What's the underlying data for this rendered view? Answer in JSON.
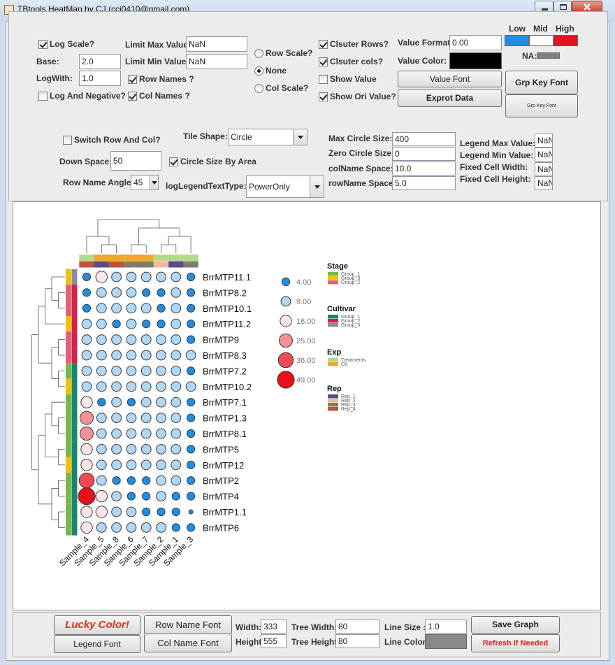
{
  "window": {
    "title": "TBtools HeatMap by CJ (ccj0410@gmail.com)"
  },
  "options": {
    "log_scale": {
      "label": "Log Scale?",
      "checked": true
    },
    "base": {
      "label": "Base:",
      "value": "2.0"
    },
    "log_with": {
      "label": "LogWith:",
      "value": "1.0"
    },
    "log_and_negative": {
      "label": "Log And Negative?",
      "checked": false
    },
    "limit_max": {
      "label": "Limit Max Value:",
      "value": "NaN"
    },
    "limit_min": {
      "label": "Limit Min Value:",
      "value": "NaN"
    },
    "row_names": {
      "label": "Row Names ?",
      "checked": true
    },
    "col_names": {
      "label": "Col Names ?",
      "checked": true
    },
    "scale": {
      "options": [
        "Row Scale?",
        "None",
        "Col Scale?"
      ],
      "selected": 1
    },
    "cluster_rows": {
      "label": "Clsuter Rows?",
      "checked": true
    },
    "cluster_cols": {
      "label": "Clsuter cols?",
      "checked": true
    },
    "show_value": {
      "label": "Show Value",
      "checked": false
    },
    "show_ori_value": {
      "label": "Show Ori Value?",
      "checked": true
    },
    "value_format": {
      "label": "Value Format:",
      "value": "0.00"
    },
    "value_color": {
      "label": "Value Color:",
      "color": "#000000"
    },
    "value_font": {
      "label": "Value Font"
    },
    "exprot_data": {
      "label": "Exprot Data"
    },
    "color_scale": {
      "low": {
        "label": "Low",
        "color": "#1e8fe6"
      },
      "mid": {
        "label": "Mid",
        "color": "#ffffff"
      },
      "high": {
        "label": "High",
        "color": "#e8101c"
      }
    },
    "na": {
      "label": "NA:",
      "color": "#808080"
    },
    "grp_key_font": {
      "label": "Grp Key Font"
    },
    "grp_key_font_small": {
      "label": "Grp Key Font"
    },
    "switch_row_col": {
      "label": "Switch Row And Col?",
      "checked": false
    },
    "tile_shape": {
      "label": "Tile Shape:",
      "value": "Circle"
    },
    "down_space": {
      "label": "Down Space:",
      "value": "50"
    },
    "circle_size_by_area": {
      "label": "Circle Size By Area",
      "checked": true
    },
    "row_name_angle": {
      "label": "Row Name Angle:",
      "value": "45"
    },
    "log_legend_text_type": {
      "label": "logLegendTextType:",
      "value": "PowerOnly"
    },
    "max_circle_size": {
      "label": "Max Circle Size:",
      "value": "400"
    },
    "zero_circle_size": {
      "label": "Zero Circle Size:",
      "value": "0"
    },
    "col_name_space": {
      "label": "colName Space:",
      "value": "10.0"
    },
    "row_name_space": {
      "label": "rowName Space:",
      "value": "5.0"
    },
    "legend_max_value": {
      "label": "Legend Max Value:",
      "value": "NaN"
    },
    "legend_min_value": {
      "label": "Legend Min Value:",
      "value": "NaN"
    },
    "fixed_cell_width": {
      "label": "Fixed Cell Width:",
      "value": "NaN"
    },
    "fixed_cell_height": {
      "label": "Fixed Cell Height:",
      "value": "NaN"
    }
  },
  "heatmap": {
    "rows": [
      "BrrMTP11.1",
      "BrrMTP8.2",
      "BrrMTP10.1",
      "BrrMTP11.2",
      "BrrMTP9",
      "BrrMTP8.3",
      "BrrMTP7.2",
      "BrrMTP10.2",
      "BrrMTP7.1",
      "BrrMTP1.3",
      "BrrMTP8.1",
      "BrrMTP5",
      "BrrMTP12",
      "BrrMTP2",
      "BrrMTP4",
      "BrrMTP1.1",
      "BrrMTP6"
    ],
    "columns": [
      "Sample_4",
      "Sample_5",
      "Sample_8",
      "Sample_6",
      "Sample_7",
      "Sample_2",
      "Sample_1",
      "Sample_3"
    ],
    "values": [
      [
        4,
        16,
        9,
        9,
        9,
        9,
        9,
        4
      ],
      [
        4,
        9,
        9,
        9,
        4,
        4,
        9,
        4
      ],
      [
        4,
        9,
        9,
        9,
        9,
        4,
        9,
        4
      ],
      [
        9,
        9,
        4,
        9,
        4,
        4,
        9,
        4
      ],
      [
        9,
        9,
        9,
        9,
        9,
        9,
        9,
        4
      ],
      [
        9,
        9,
        9,
        9,
        9,
        9,
        9,
        9
      ],
      [
        9,
        9,
        9,
        9,
        9,
        9,
        9,
        4
      ],
      [
        9,
        9,
        9,
        9,
        9,
        9,
        9,
        9
      ],
      [
        16,
        4,
        9,
        4,
        9,
        9,
        9,
        4
      ],
      [
        25,
        9,
        9,
        9,
        9,
        9,
        9,
        4
      ],
      [
        25,
        9,
        9,
        9,
        9,
        9,
        9,
        4
      ],
      [
        16,
        9,
        9,
        9,
        9,
        9,
        9,
        4
      ],
      [
        16,
        9,
        9,
        9,
        9,
        9,
        9,
        4
      ],
      [
        36,
        9,
        4,
        4,
        4,
        9,
        9,
        4
      ],
      [
        49,
        16,
        9,
        4,
        4,
        9,
        4,
        4
      ],
      [
        16,
        16,
        9,
        9,
        4,
        4,
        4,
        0
      ],
      [
        16,
        9,
        9,
        9,
        9,
        9,
        4,
        4
      ]
    ],
    "row_annotations": {
      "Stage": [
        "Group_3",
        "Group_2",
        "Group_2",
        "Group_3",
        "Group_2",
        "Group_2",
        "Group_1",
        "Group_3",
        "Group_1",
        "Group_1",
        "Group_1",
        "Group_1",
        "Group_3",
        "Group_1",
        "Group_1",
        "Group_1",
        "Group_1"
      ],
      "Cultivar": [
        "Group_3",
        "Group_2",
        "Group_2",
        "Group_2",
        "Group_2",
        "Group_2",
        "Group_1",
        "Group_1",
        "Group_1",
        "Group_1",
        "Group_1",
        "Group_1",
        "Group_1",
        "Group_1",
        "Group_1",
        "Group_1",
        "Group_1"
      ]
    },
    "column_annotations": {
      "Exp": [
        "Treatments",
        "CK",
        "CK",
        "CK",
        "CK",
        "Treatments",
        "Treatments",
        "Treatments"
      ],
      "Rep": [
        "Rep_4",
        "Rep_1",
        "Rep_4",
        "Rep_3",
        "Rep_3",
        "Rep_2",
        "Rep_1",
        "Rep_3"
      ]
    },
    "size_legend": [
      {
        "value": 4,
        "label": "4.00"
      },
      {
        "value": 9,
        "label": "9.00"
      },
      {
        "value": 16,
        "label": "16.00"
      },
      {
        "value": 25,
        "label": "25.00"
      },
      {
        "value": 36,
        "label": "36.00"
      },
      {
        "value": 49,
        "label": "49.00"
      }
    ],
    "group_legend": [
      {
        "title": "Stage",
        "items": [
          {
            "label": "Group_1",
            "color": "#7ab648"
          },
          {
            "label": "Group_3",
            "color": "#f2c200"
          },
          {
            "label": "Group_2",
            "color": "#e4607a"
          }
        ]
      },
      {
        "title": "Cultivar",
        "items": [
          {
            "label": "Group_1",
            "color": "#17866a"
          },
          {
            "label": "Group_2",
            "color": "#d0234a"
          },
          {
            "label": "Group_3",
            "color": "#8c8c9c"
          }
        ]
      },
      {
        "title": "Exp",
        "items": [
          {
            "label": "Treatments",
            "color": "#b5d98a"
          },
          {
            "label": "CK",
            "color": "#f0a830"
          }
        ]
      },
      {
        "title": "Rep",
        "items": [
          {
            "label": "Rep_1",
            "color": "#5a4a8a"
          },
          {
            "label": "Rep_2",
            "color": "#f2b89a"
          },
          {
            "label": "Rep_3",
            "color": "#7d7d6a"
          },
          {
            "label": "Rep_4",
            "color": "#c0523a"
          }
        ]
      }
    ]
  },
  "bottom": {
    "lucky_color": {
      "label": "Lucky Color!"
    },
    "legend_font": {
      "label": "Legend Font"
    },
    "row_name_font": {
      "label": "Row Name Font"
    },
    "col_name_font": {
      "label": "Col Name Font"
    },
    "width": {
      "label": "Width:",
      "value": "333"
    },
    "height": {
      "label": "Height:",
      "value": "555"
    },
    "tree_width": {
      "label": "Tree Width:",
      "value": "80"
    },
    "tree_height": {
      "label": "Tree Height:",
      "value": "80"
    },
    "line_size": {
      "label": "Line Size :",
      "value": "1.0"
    },
    "line_color": {
      "label": "Line Color:",
      "color": "#888888"
    },
    "save_graph": {
      "label": "Save Graph"
    },
    "refresh": {
      "label": "Refresh If Needed"
    }
  }
}
